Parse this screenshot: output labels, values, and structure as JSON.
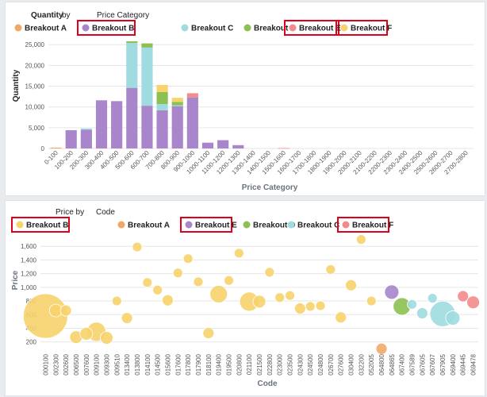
{
  "colors": {
    "A": "#f0a868",
    "B": "#a986cc",
    "C": "#9fdbe0",
    "D": "#8cc152",
    "E": "#f28b8b",
    "F": "#f7d36b",
    "highlight": "#e0001b",
    "grid": "#e6e6e6"
  },
  "top_panel": {
    "title": "Quantity",
    "by": "by",
    "dimension": "Price Category",
    "legend": [
      {
        "key": "A",
        "label": "Breakout A",
        "highlighted": false
      },
      {
        "key": "B",
        "label": "Breakout B",
        "highlighted": true
      },
      {
        "key": "C",
        "label": "Breakout C",
        "highlighted": false
      },
      {
        "key": "D",
        "label": "Breakout D",
        "highlighted": false
      },
      {
        "key": "E",
        "label": "Breakout E",
        "highlighted": true
      },
      {
        "key": "F",
        "label": "Breakout F",
        "highlighted": true
      }
    ]
  },
  "bottom_panel": {
    "title": "Price by",
    "dimension": "Code",
    "legend": [
      {
        "key": "F",
        "label": "Breakout B",
        "highlighted": true
      },
      {
        "key": "A",
        "label": "Breakout A",
        "highlighted": false
      },
      {
        "key": "B",
        "label": "Breakout E",
        "highlighted": true
      },
      {
        "key": "D",
        "label": "Breakout D",
        "highlighted": false
      },
      {
        "key": "C",
        "label": "Breakout C",
        "highlighted": false
      },
      {
        "key": "E",
        "label": "Breakout F",
        "highlighted": true
      }
    ]
  },
  "chart_data": [
    {
      "type": "bar",
      "stacked": true,
      "xlabel": "Price Category",
      "ylabel": "Quantity",
      "ylim": [
        0,
        26000
      ],
      "yticks": [
        0,
        5000,
        10000,
        15000,
        20000,
        25000
      ],
      "ytick_labels": [
        "0",
        "5,000",
        "10,000",
        "15,000",
        "20,000",
        "25,000"
      ],
      "grid": true,
      "categories": [
        "0-100",
        "100-200",
        "200-300",
        "300-400",
        "400-500",
        "500-600",
        "600-700",
        "700-800",
        "800-900",
        "900-1000",
        "1000-1100",
        "1100-1200",
        "1200-1300",
        "1300-1400",
        "1400-1500",
        "1500-1600",
        "1600-1700",
        "1700-1800",
        "1800-1900",
        "1900-2000",
        "2000-2100",
        "2100-2200",
        "2200-2300",
        "2300-2400",
        "2400-2500",
        "2500-2600",
        "2600-2700",
        "2700-2800"
      ],
      "series": [
        {
          "key": "B",
          "values": [
            0,
            4400,
            4500,
            11600,
            11400,
            14600,
            10300,
            9200,
            10200,
            12300,
            1400,
            2000,
            800,
            0,
            0,
            0,
            0,
            0,
            0,
            0,
            0,
            0,
            0,
            0,
            0,
            0,
            0,
            0
          ]
        },
        {
          "key": "C",
          "values": [
            0,
            0,
            300,
            0,
            0,
            10800,
            14000,
            1500,
            200,
            0,
            0,
            0,
            0,
            0,
            0,
            0,
            0,
            0,
            0,
            0,
            0,
            0,
            0,
            0,
            0,
            0,
            0,
            0
          ]
        },
        {
          "key": "D",
          "values": [
            0,
            0,
            0,
            0,
            0,
            400,
            1000,
            2900,
            800,
            0,
            0,
            0,
            0,
            0,
            0,
            0,
            0,
            0,
            0,
            0,
            0,
            0,
            0,
            0,
            0,
            0,
            0,
            0
          ]
        },
        {
          "key": "F",
          "values": [
            0,
            0,
            0,
            0,
            0,
            0,
            0,
            1700,
            1000,
            0,
            0,
            0,
            0,
            0,
            0,
            0,
            0,
            0,
            0,
            0,
            0,
            0,
            0,
            0,
            0,
            0,
            0,
            0
          ]
        },
        {
          "key": "E",
          "values": [
            0,
            0,
            0,
            0,
            0,
            0,
            0,
            0,
            0,
            1000,
            0,
            0,
            0,
            0,
            0,
            100,
            0,
            0,
            0,
            0,
            0,
            0,
            0,
            0,
            0,
            0,
            0,
            0
          ]
        },
        {
          "key": "A",
          "values": [
            200,
            0,
            0,
            0,
            0,
            0,
            0,
            0,
            0,
            0,
            0,
            0,
            0,
            0,
            0,
            0,
            0,
            0,
            0,
            0,
            0,
            0,
            0,
            0,
            0,
            0,
            0,
            0
          ]
        }
      ]
    },
    {
      "type": "scatter",
      "xlabel": "Code",
      "ylabel": "Price",
      "ylim": [
        80,
        1800
      ],
      "yticks": [
        200,
        400,
        600,
        800,
        1000,
        1200,
        1400,
        1600
      ],
      "ytick_labels": [
        "200",
        "400",
        "600",
        "800",
        "1,000",
        "1,200",
        "1,400",
        "1,600"
      ],
      "grid": true,
      "categories": [
        "000100",
        "002300",
        "002600",
        "006500",
        "007600",
        "009100",
        "009300",
        "009510",
        "013400",
        "013800",
        "014100",
        "014500",
        "015600",
        "017600",
        "017800",
        "017900",
        "018100",
        "019400",
        "019500",
        "020800",
        "021100",
        "021500",
        "022800",
        "023000",
        "023500",
        "024300",
        "024500",
        "024800",
        "026700",
        "027600",
        "030400",
        "032200",
        "052005",
        "064800",
        "064865",
        "067400",
        "067589",
        "067605",
        "067607",
        "067905",
        "069400",
        "069445",
        "069478"
      ],
      "points": [
        {
          "x": "000100",
          "y": 580,
          "size": 28,
          "key": "F"
        },
        {
          "x": "002300",
          "y": 660,
          "size": 8,
          "key": "F"
        },
        {
          "x": "002600",
          "y": 660,
          "size": 7,
          "key": "F"
        },
        {
          "x": "006500",
          "y": 270,
          "size": 8,
          "key": "F"
        },
        {
          "x": "007600",
          "y": 320,
          "size": 8,
          "key": "F"
        },
        {
          "x": "009100",
          "y": 350,
          "size": 12,
          "key": "F"
        },
        {
          "x": "009300",
          "y": 260,
          "size": 8,
          "key": "F"
        },
        {
          "x": "009510",
          "y": 800,
          "size": 6,
          "key": "F"
        },
        {
          "x": "013400",
          "y": 550,
          "size": 7,
          "key": "F"
        },
        {
          "x": "013800",
          "y": 1590,
          "size": 6,
          "key": "F"
        },
        {
          "x": "014100",
          "y": 1070,
          "size": 6,
          "key": "F"
        },
        {
          "x": "014500",
          "y": 960,
          "size": 6,
          "key": "F"
        },
        {
          "x": "015600",
          "y": 810,
          "size": 7,
          "key": "F"
        },
        {
          "x": "017600",
          "y": 1210,
          "size": 6,
          "key": "F"
        },
        {
          "x": "017800",
          "y": 1420,
          "size": 6,
          "key": "F"
        },
        {
          "x": "017900",
          "y": 1080,
          "size": 6,
          "key": "F"
        },
        {
          "x": "018100",
          "y": 330,
          "size": 7,
          "key": "F"
        },
        {
          "x": "019400",
          "y": 900,
          "size": 11,
          "key": "F"
        },
        {
          "x": "019500",
          "y": 1100,
          "size": 6,
          "key": "F"
        },
        {
          "x": "020800",
          "y": 1500,
          "size": 6,
          "key": "F"
        },
        {
          "x": "021100",
          "y": 790,
          "size": 12,
          "key": "F"
        },
        {
          "x": "021500",
          "y": 790,
          "size": 8,
          "key": "F"
        },
        {
          "x": "022800",
          "y": 1220,
          "size": 6,
          "key": "F"
        },
        {
          "x": "023000",
          "y": 850,
          "size": 6,
          "key": "F"
        },
        {
          "x": "023500",
          "y": 880,
          "size": 6,
          "key": "F"
        },
        {
          "x": "024300",
          "y": 690,
          "size": 7,
          "key": "F"
        },
        {
          "x": "024500",
          "y": 720,
          "size": 6,
          "key": "F"
        },
        {
          "x": "024800",
          "y": 730,
          "size": 6,
          "key": "F"
        },
        {
          "x": "026700",
          "y": 1260,
          "size": 6,
          "key": "F"
        },
        {
          "x": "027600",
          "y": 560,
          "size": 7,
          "key": "F"
        },
        {
          "x": "030400",
          "y": 1030,
          "size": 7,
          "key": "F"
        },
        {
          "x": "032200",
          "y": 1700,
          "size": 6,
          "key": "F"
        },
        {
          "x": "052005",
          "y": 800,
          "size": 6,
          "key": "F"
        },
        {
          "x": "064800",
          "y": 100,
          "size": 7,
          "key": "A"
        },
        {
          "x": "064865",
          "y": 930,
          "size": 9,
          "key": "B"
        },
        {
          "x": "067400",
          "y": 720,
          "size": 11,
          "key": "D"
        },
        {
          "x": "067589",
          "y": 750,
          "size": 6,
          "key": "C"
        },
        {
          "x": "067605",
          "y": 620,
          "size": 7,
          "key": "C"
        },
        {
          "x": "067607",
          "y": 840,
          "size": 6,
          "key": "C"
        },
        {
          "x": "067905",
          "y": 610,
          "size": 16,
          "key": "C"
        },
        {
          "x": "069400",
          "y": 550,
          "size": 9,
          "key": "C"
        },
        {
          "x": "069445",
          "y": 870,
          "size": 7,
          "key": "E"
        },
        {
          "x": "069478",
          "y": 780,
          "size": 8,
          "key": "E"
        }
      ]
    }
  ]
}
